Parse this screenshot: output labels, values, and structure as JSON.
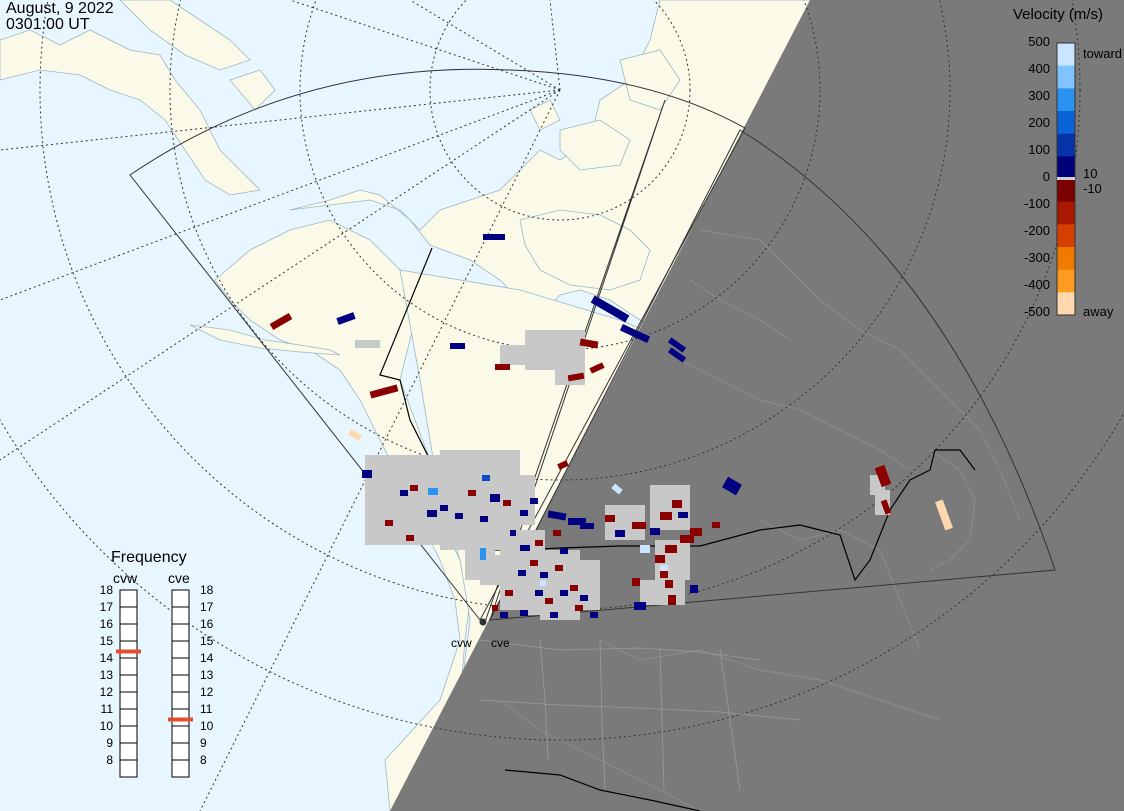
{
  "header": {
    "date": "August, 9 2022",
    "time": "0301:00 UT"
  },
  "colorbar": {
    "title": "Velocity (m/s)",
    "ticks": [
      "500",
      "400",
      "300",
      "200",
      "100",
      "0",
      "-100",
      "-200",
      "-300",
      "-400",
      "-500"
    ],
    "toward_label": "toward",
    "away_label": "away",
    "pos_min_label": "10",
    "neg_min_label": "-10",
    "colors": [
      "#c8e6ff",
      "#7fc4ff",
      "#2a93f0",
      "#0b63d8",
      "#0434a8",
      "#00007a",
      "#7a0000",
      "#a81a00",
      "#d44000",
      "#f07a00",
      "#ff9a20",
      "#ffd8b0"
    ]
  },
  "frequency": {
    "title": "Frequency",
    "radars": [
      {
        "name": "cvw",
        "value": 15
      },
      {
        "name": "cve",
        "value": 11
      }
    ],
    "scale": [
      "18",
      "17",
      "16",
      "15",
      "14",
      "13",
      "12",
      "11",
      "10",
      "9",
      "8"
    ],
    "marker_color": "#e05030"
  },
  "sites": [
    {
      "name": "cvw"
    },
    {
      "name": "cve"
    }
  ],
  "map": {
    "ocean_color": "#e8f6ff",
    "land_color": "#fbf9e8",
    "night_color": "#7a7a7a",
    "low_velocity_color": "#c8c8c8",
    "features": [
      "coastlines",
      "country-borders",
      "state-borders",
      "lat-lon-grid",
      "radar-fov",
      "day-night-terminator"
    ]
  }
}
